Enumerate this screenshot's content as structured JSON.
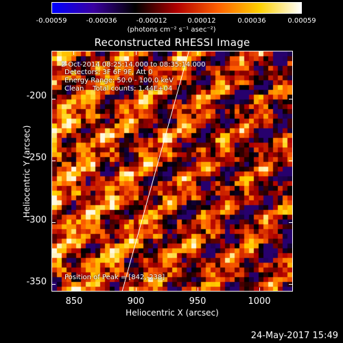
{
  "chart_data": {
    "type": "heatmap",
    "title": "Reconstructed RHESSI Image",
    "xlabel": "Heliocentric X (arcsec)",
    "ylabel": "Heliocentric Y (arcsec)",
    "xlim": [
      832,
      1027
    ],
    "ylim": [
      -356,
      -161
    ],
    "xticks": [
      850,
      900,
      950,
      1000
    ],
    "yticks": [
      -200,
      -250,
      -300,
      -350
    ],
    "colorbar": {
      "ticks": [
        "-0.00059",
        "-0.00036",
        "-0.00012",
        "0.00012",
        "0.00036",
        "0.00059"
      ],
      "range": [
        -0.00059,
        0.00059
      ],
      "unit_label": "(photons cm⁻² s⁻¹ asec⁻²)",
      "colormap": [
        "#0000ff",
        "#3a00a0",
        "#000000",
        "#b00000",
        "#ff6000",
        "#ffd000",
        "#ffffff"
      ]
    },
    "annotations": {
      "time": "2-Oct-2014 08:25:14.000 to 08:35:14.000",
      "detectors": "Detectors: 3F 6F 9F, Att 0",
      "energy": "Energy Range: 50.0 - 100.0 keV",
      "clean": "Clean    Total counts: 1.44E+04",
      "peak": "Position of Peak = [842,-238]"
    },
    "limb_line": {
      "from": [
        889,
        -356
      ],
      "to": [
        943,
        -161
      ]
    },
    "peak_position": [
      842,
      -238
    ]
  },
  "footer": {
    "timestamp": "24-May-2017 15:49"
  }
}
